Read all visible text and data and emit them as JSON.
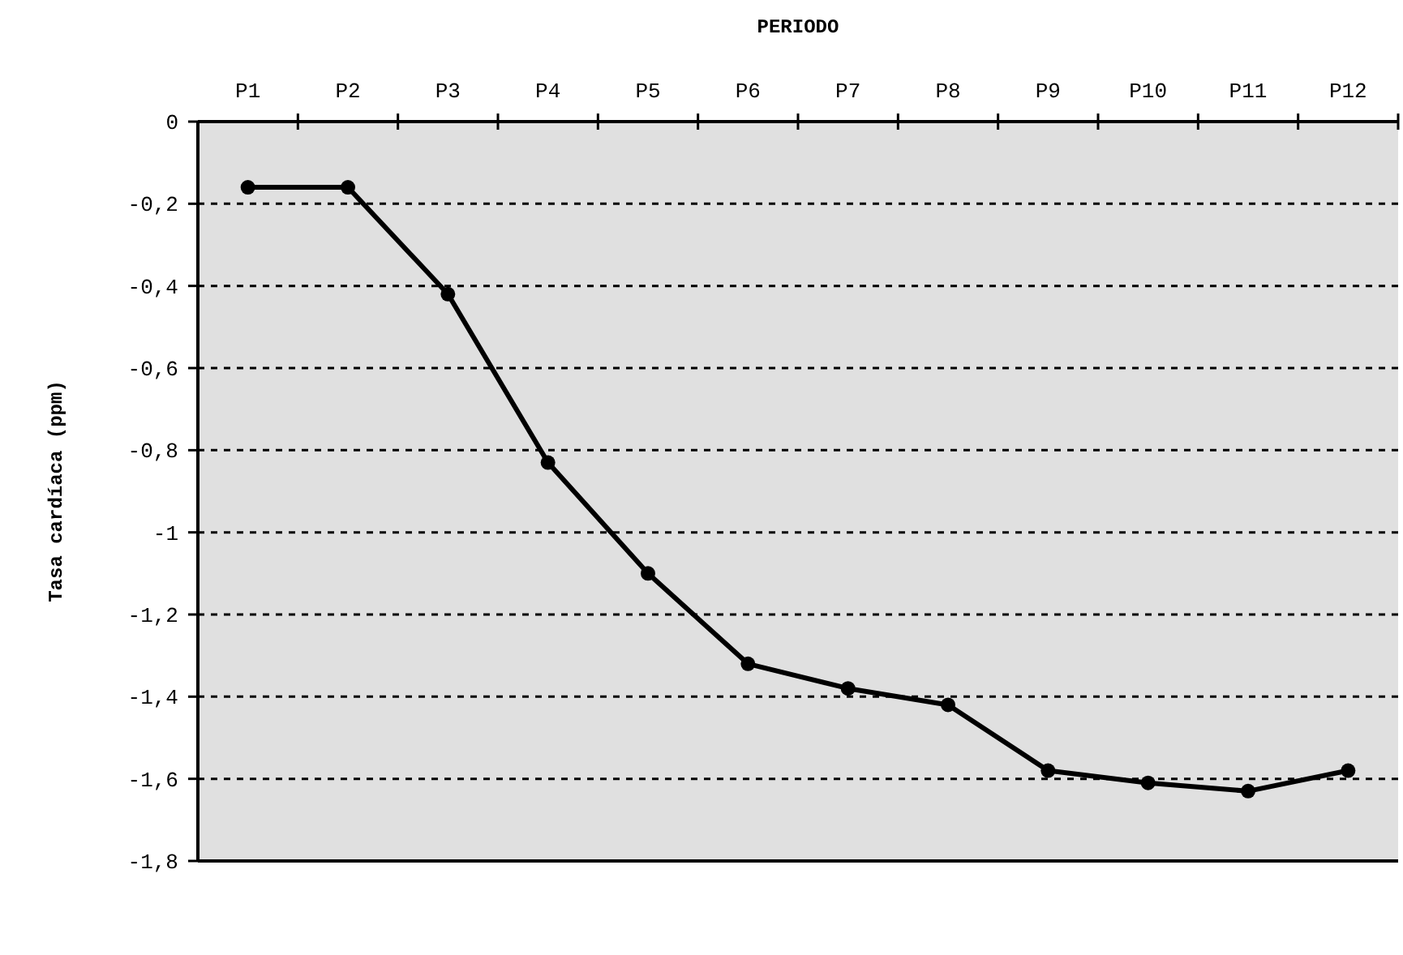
{
  "chart_data": {
    "type": "line",
    "title": "PERIODO",
    "ylabel": "Tasa cardíaca (ppm)",
    "categories": [
      "P1",
      "P2",
      "P3",
      "P4",
      "P5",
      "P6",
      "P7",
      "P8",
      "P9",
      "P10",
      "P11",
      "P12"
    ],
    "series": [
      {
        "color": "#000000",
        "values": [
          -0.16,
          -0.16,
          -0.42,
          -0.83,
          -1.1,
          -1.32,
          -1.38,
          -1.42,
          -1.58,
          -1.61,
          -1.63,
          -1.58
        ]
      }
    ],
    "ylim": [
      -1.8,
      0
    ],
    "yticks": [
      0,
      {
        "value": -0.2,
        "label": "-0,2"
      },
      {
        "value": -0.4,
        "label": "-0,4"
      },
      {
        "value": -0.6,
        "label": "-0,6"
      },
      {
        "value": -0.8,
        "label": "-0,8"
      },
      -1,
      {
        "value": -1.2,
        "label": "-1,2"
      },
      {
        "value": -1.4,
        "label": "-1,4"
      },
      {
        "value": -1.6,
        "label": "-1,6"
      },
      {
        "value": -1.8,
        "label": "-1,8"
      }
    ],
    "grid": "y",
    "marker": "circle",
    "line_style": "solid"
  }
}
